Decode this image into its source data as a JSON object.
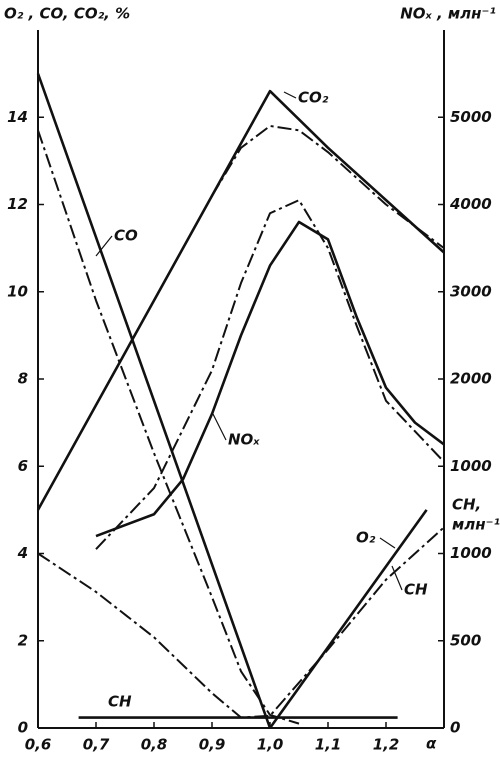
{
  "chart_data": {
    "type": "line",
    "y_label": "O₂ , CO, CO₂, %",
    "y2_label": "NOₓ , млн⁻¹",
    "y3_label": [
      "CH,",
      "млн⁻¹"
    ],
    "x_label": "α",
    "xlim": [
      0.6,
      1.3
    ],
    "xticks": [
      {
        "value": 0.6,
        "label": "0,6"
      },
      {
        "value": 0.7,
        "label": "0,7"
      },
      {
        "value": 0.8,
        "label": "0,8"
      },
      {
        "value": 0.9,
        "label": "0,9"
      },
      {
        "value": 1.0,
        "label": "1,0"
      },
      {
        "value": 1.1,
        "label": "1,1"
      },
      {
        "value": 1.2,
        "label": "1,2"
      }
    ],
    "ylim": [
      0,
      16
    ],
    "yticks": [
      0,
      2,
      4,
      6,
      8,
      10,
      12,
      14
    ],
    "y2lim": [
      -2000,
      6000
    ],
    "y2ticks": [
      1000,
      2000,
      3000,
      4000,
      5000
    ],
    "y3lim": [
      0,
      4000
    ],
    "y3ticks": [
      0,
      500,
      1000
    ],
    "series": [
      {
        "name": "CO₂",
        "color": "#111",
        "style": "solid",
        "x": [
          0.6,
          0.7,
          0.8,
          0.9,
          1.0,
          1.1,
          1.2,
          1.3
        ],
        "values": [
          5.0,
          7.4,
          9.8,
          12.2,
          14.6,
          13.3,
          12.1,
          10.9
        ]
      },
      {
        "color": "#111",
        "style": "dashdot",
        "x": [
          0.9,
          0.95,
          1.0,
          1.05,
          1.1,
          1.2,
          1.3
        ],
        "values": [
          12.2,
          13.3,
          13.8,
          13.7,
          13.2,
          12.0,
          11.0
        ]
      },
      {
        "name": "CO",
        "color": "#111",
        "style": "solid",
        "x": [
          0.6,
          1.0
        ],
        "values": [
          15.0,
          0
        ]
      },
      {
        "color": "#111",
        "style": "dashdot",
        "x": [
          0.6,
          0.7,
          0.8,
          0.9,
          0.95,
          1.0,
          1.05
        ],
        "values": [
          13.7,
          9.8,
          6.3,
          3.0,
          1.3,
          0.3,
          0.1
        ]
      },
      {
        "name": "NOₓ",
        "color": "#111",
        "style": "solid",
        "axis": "y2",
        "x": [
          0.7,
          0.8,
          0.85,
          0.9,
          0.95,
          1.0,
          1.05,
          1.1,
          1.15,
          1.2,
          1.25,
          1.3
        ],
        "values": [
          200,
          450,
          850,
          1600,
          2500,
          3300,
          3800,
          3600,
          2700,
          1900,
          1500,
          1250
        ]
      },
      {
        "color": "#111",
        "style": "dashdot",
        "axis": "y2",
        "x": [
          0.7,
          0.8,
          0.9,
          0.95,
          1.0,
          1.05,
          1.1,
          1.15,
          1.2,
          1.3
        ],
        "values": [
          50,
          750,
          2100,
          3100,
          3900,
          4050,
          3500,
          2600,
          1750,
          1050
        ]
      },
      {
        "name": "O₂",
        "color": "#111",
        "style": "solid",
        "x": [
          1.0,
          1.27
        ],
        "values": [
          0,
          5.0
        ]
      },
      {
        "name": "CH",
        "color": "#111",
        "style": "solid",
        "axis": "y3",
        "x": [
          0.67,
          1.22
        ],
        "values": [
          60,
          60
        ]
      },
      {
        "name": "CH",
        "color": "#111",
        "style": "dashdot",
        "axis": "y3",
        "x": [
          0.6,
          0.7,
          0.8,
          0.9,
          0.95,
          1.0,
          1.1,
          1.2,
          1.3
        ],
        "values": [
          1000,
          780,
          520,
          200,
          60,
          70,
          450,
          850,
          1150
        ]
      }
    ]
  }
}
